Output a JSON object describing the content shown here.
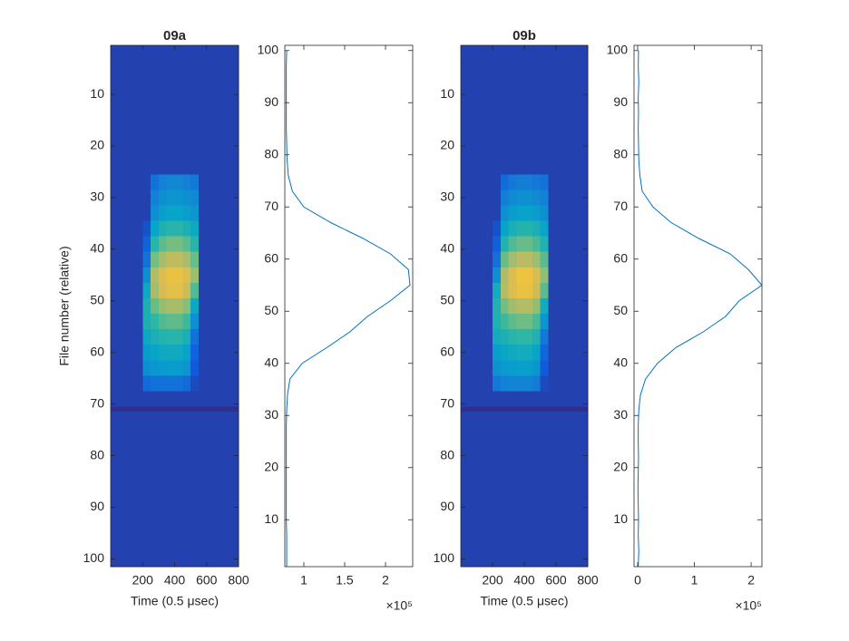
{
  "chart_data": [
    {
      "type": "heatmap",
      "title": "09a",
      "xlabel": "Time (0.5 μsec)",
      "ylabel": "File number (relative)",
      "xlim": [
        0,
        800
      ],
      "xticks": [
        200,
        400,
        600,
        800
      ],
      "ylim": [
        0.5,
        101.5
      ],
      "yticks": [
        10,
        20,
        30,
        40,
        50,
        60,
        70,
        80,
        90,
        100
      ],
      "ydir": "reverse",
      "clim": [
        0,
        1
      ],
      "colormap": [
        "#352a87",
        "#0f5cdd",
        "#1481d6",
        "#06a4ca",
        "#2eb7a4",
        "#87bf77",
        "#d1bb59",
        "#fec832",
        "#f9fb0e"
      ],
      "x_edges": [
        0,
        200,
        250,
        300,
        350,
        400,
        450,
        500,
        550,
        800
      ],
      "y_edges": [
        0.5,
        5.5,
        10.5,
        15.5,
        20.5,
        25.5,
        28.5,
        31.5,
        34.5,
        37.5,
        40.5,
        43.5,
        46.5,
        49.5,
        52.5,
        55.5,
        58.5,
        61.5,
        64.5,
        67.5,
        70.5,
        71.5,
        76.5,
        81.5,
        86.5,
        91.5,
        96.5,
        101.5
      ],
      "z": [
        [
          0.06,
          0.06,
          0.06,
          0.06,
          0.06,
          0.06,
          0.06,
          0.06,
          0.06
        ],
        [
          0.06,
          0.06,
          0.06,
          0.06,
          0.06,
          0.06,
          0.06,
          0.06,
          0.06
        ],
        [
          0.06,
          0.06,
          0.06,
          0.06,
          0.06,
          0.06,
          0.06,
          0.06,
          0.06
        ],
        [
          0.06,
          0.06,
          0.06,
          0.06,
          0.06,
          0.06,
          0.06,
          0.06,
          0.06
        ],
        [
          0.06,
          0.06,
          0.06,
          0.06,
          0.06,
          0.06,
          0.06,
          0.06,
          0.06
        ],
        [
          0.06,
          0.06,
          0.2,
          0.25,
          0.27,
          0.27,
          0.25,
          0.22,
          0.06
        ],
        [
          0.06,
          0.06,
          0.25,
          0.3,
          0.32,
          0.32,
          0.3,
          0.27,
          0.06
        ],
        [
          0.06,
          0.06,
          0.3,
          0.36,
          0.38,
          0.38,
          0.36,
          0.32,
          0.06
        ],
        [
          0.06,
          0.1,
          0.38,
          0.45,
          0.48,
          0.48,
          0.45,
          0.4,
          0.06
        ],
        [
          0.06,
          0.15,
          0.48,
          0.56,
          0.6,
          0.6,
          0.56,
          0.48,
          0.06
        ],
        [
          0.06,
          0.2,
          0.6,
          0.68,
          0.72,
          0.72,
          0.68,
          0.58,
          0.06
        ],
        [
          0.06,
          0.3,
          0.7,
          0.78,
          0.82,
          0.82,
          0.78,
          0.66,
          0.06
        ],
        [
          0.06,
          0.4,
          0.68,
          0.76,
          0.8,
          0.8,
          0.74,
          0.55,
          0.06
        ],
        [
          0.06,
          0.45,
          0.58,
          0.65,
          0.68,
          0.68,
          0.62,
          0.4,
          0.06
        ],
        [
          0.06,
          0.45,
          0.5,
          0.55,
          0.57,
          0.57,
          0.52,
          0.3,
          0.06
        ],
        [
          0.06,
          0.4,
          0.44,
          0.47,
          0.48,
          0.48,
          0.44,
          0.2,
          0.06
        ],
        [
          0.06,
          0.35,
          0.38,
          0.4,
          0.41,
          0.41,
          0.37,
          0.15,
          0.06
        ],
        [
          0.06,
          0.3,
          0.33,
          0.34,
          0.35,
          0.35,
          0.32,
          0.12,
          0.06
        ],
        [
          0.06,
          0.18,
          0.2,
          0.2,
          0.2,
          0.2,
          0.18,
          0.08,
          0.06
        ],
        [
          0.06,
          0.06,
          0.06,
          0.06,
          0.06,
          0.06,
          0.06,
          0.06,
          0.06
        ],
        [
          0.01,
          0.01,
          0.01,
          0.01,
          0.01,
          0.01,
          0.01,
          0.01,
          0.01
        ],
        [
          0.06,
          0.06,
          0.06,
          0.06,
          0.06,
          0.06,
          0.06,
          0.06,
          0.06
        ],
        [
          0.06,
          0.06,
          0.06,
          0.06,
          0.06,
          0.06,
          0.06,
          0.06,
          0.06
        ],
        [
          0.06,
          0.06,
          0.06,
          0.06,
          0.06,
          0.06,
          0.06,
          0.06,
          0.06
        ],
        [
          0.06,
          0.06,
          0.06,
          0.06,
          0.06,
          0.06,
          0.06,
          0.06,
          0.06
        ],
        [
          0.06,
          0.06,
          0.06,
          0.06,
          0.06,
          0.06,
          0.06,
          0.06,
          0.06
        ],
        [
          0.06,
          0.06,
          0.06,
          0.06,
          0.06,
          0.06,
          0.06,
          0.06,
          0.06
        ]
      ]
    },
    {
      "type": "line",
      "color": "#0072bd",
      "x_exponent": "×10⁵",
      "xlim": [
        76700,
        233300
      ],
      "xticks": [
        {
          "value": 100000,
          "label": "1"
        },
        {
          "value": 150000,
          "label": "1.5"
        },
        {
          "value": 200000,
          "label": "2"
        }
      ],
      "ylim": [
        1,
        101
      ],
      "yticks": [
        10,
        20,
        30,
        40,
        50,
        60,
        70,
        80,
        90,
        100
      ],
      "y": [
        1,
        4,
        7,
        10,
        13,
        16,
        19,
        22,
        25,
        28,
        31,
        34,
        37,
        40,
        43,
        46,
        49,
        52,
        55,
        58,
        61,
        64,
        67,
        70,
        73,
        76,
        79,
        82,
        85,
        88,
        91,
        94,
        97,
        100
      ],
      "values": [
        79000,
        79000,
        79000,
        78500,
        78500,
        78500,
        78500,
        78500,
        78500,
        78500,
        79000,
        80000,
        83000,
        98000,
        128000,
        156000,
        178000,
        206000,
        230000,
        228000,
        206000,
        172000,
        133000,
        100000,
        86000,
        81000,
        79500,
        79000,
        78500,
        78500,
        78500,
        78500,
        78500,
        79000
      ]
    },
    {
      "type": "heatmap",
      "title": "09b",
      "xlabel": "Time (0.5 μsec)",
      "xlim": [
        0,
        800
      ],
      "xticks": [
        200,
        400,
        600,
        800
      ],
      "ylim": [
        0.5,
        101.5
      ],
      "yticks": [
        10,
        20,
        30,
        40,
        50,
        60,
        70,
        80,
        90,
        100
      ],
      "ydir": "reverse",
      "clim": [
        0,
        1
      ],
      "colormap": [
        "#352a87",
        "#0f5cdd",
        "#1481d6",
        "#06a4ca",
        "#2eb7a4",
        "#87bf77",
        "#d1bb59",
        "#fec832",
        "#f9fb0e"
      ],
      "x_edges": [
        0,
        200,
        250,
        300,
        350,
        400,
        450,
        500,
        550,
        800
      ],
      "y_edges": [
        0.5,
        5.5,
        10.5,
        15.5,
        20.5,
        25.5,
        28.5,
        31.5,
        34.5,
        37.5,
        40.5,
        43.5,
        46.5,
        49.5,
        52.5,
        55.5,
        58.5,
        61.5,
        64.5,
        67.5,
        70.5,
        71.5,
        76.5,
        81.5,
        86.5,
        91.5,
        96.5,
        101.5
      ],
      "z": [
        [
          0.06,
          0.06,
          0.06,
          0.06,
          0.06,
          0.06,
          0.06,
          0.06,
          0.06
        ],
        [
          0.06,
          0.06,
          0.06,
          0.06,
          0.06,
          0.06,
          0.06,
          0.06,
          0.06
        ],
        [
          0.06,
          0.06,
          0.06,
          0.06,
          0.06,
          0.06,
          0.06,
          0.06,
          0.06
        ],
        [
          0.06,
          0.06,
          0.06,
          0.06,
          0.06,
          0.06,
          0.06,
          0.06,
          0.06
        ],
        [
          0.06,
          0.06,
          0.06,
          0.06,
          0.06,
          0.06,
          0.06,
          0.06,
          0.06
        ],
        [
          0.06,
          0.06,
          0.18,
          0.22,
          0.24,
          0.24,
          0.22,
          0.2,
          0.06
        ],
        [
          0.06,
          0.06,
          0.24,
          0.28,
          0.3,
          0.3,
          0.28,
          0.25,
          0.06
        ],
        [
          0.06,
          0.06,
          0.3,
          0.35,
          0.37,
          0.37,
          0.35,
          0.3,
          0.06
        ],
        [
          0.06,
          0.1,
          0.37,
          0.44,
          0.47,
          0.47,
          0.44,
          0.38,
          0.06
        ],
        [
          0.06,
          0.14,
          0.46,
          0.55,
          0.58,
          0.58,
          0.54,
          0.46,
          0.06
        ],
        [
          0.06,
          0.2,
          0.58,
          0.67,
          0.71,
          0.71,
          0.66,
          0.56,
          0.06
        ],
        [
          0.06,
          0.3,
          0.69,
          0.78,
          0.83,
          0.83,
          0.77,
          0.64,
          0.06
        ],
        [
          0.06,
          0.42,
          0.7,
          0.78,
          0.82,
          0.82,
          0.75,
          0.56,
          0.06
        ],
        [
          0.06,
          0.46,
          0.6,
          0.67,
          0.7,
          0.7,
          0.64,
          0.42,
          0.06
        ],
        [
          0.06,
          0.46,
          0.52,
          0.57,
          0.59,
          0.59,
          0.54,
          0.32,
          0.06
        ],
        [
          0.06,
          0.42,
          0.45,
          0.48,
          0.5,
          0.5,
          0.46,
          0.22,
          0.06
        ],
        [
          0.06,
          0.36,
          0.39,
          0.41,
          0.42,
          0.42,
          0.38,
          0.16,
          0.06
        ],
        [
          0.06,
          0.31,
          0.34,
          0.35,
          0.36,
          0.36,
          0.33,
          0.12,
          0.06
        ],
        [
          0.06,
          0.22,
          0.25,
          0.26,
          0.26,
          0.26,
          0.23,
          0.08,
          0.06
        ],
        [
          0.06,
          0.06,
          0.06,
          0.06,
          0.06,
          0.06,
          0.06,
          0.06,
          0.06
        ],
        [
          0.01,
          0.01,
          0.01,
          0.01,
          0.01,
          0.01,
          0.01,
          0.01,
          0.01
        ],
        [
          0.06,
          0.06,
          0.06,
          0.06,
          0.06,
          0.06,
          0.06,
          0.06,
          0.06
        ],
        [
          0.06,
          0.06,
          0.06,
          0.06,
          0.06,
          0.06,
          0.06,
          0.06,
          0.06
        ],
        [
          0.06,
          0.06,
          0.06,
          0.06,
          0.06,
          0.06,
          0.06,
          0.06,
          0.06
        ],
        [
          0.06,
          0.06,
          0.06,
          0.06,
          0.06,
          0.06,
          0.06,
          0.06,
          0.06
        ],
        [
          0.06,
          0.06,
          0.06,
          0.06,
          0.06,
          0.06,
          0.06,
          0.06,
          0.06
        ],
        [
          0.06,
          0.06,
          0.06,
          0.06,
          0.06,
          0.06,
          0.06,
          0.06,
          0.06
        ]
      ]
    },
    {
      "type": "line",
      "color": "#0072bd",
      "x_exponent": "×10⁵",
      "xlim": [
        -6400,
        219000
      ],
      "xticks": [
        {
          "value": 0,
          "label": "0"
        },
        {
          "value": 100000,
          "label": "1"
        },
        {
          "value": 200000,
          "label": "2"
        }
      ],
      "ylim": [
        1,
        101
      ],
      "yticks": [
        10,
        20,
        30,
        40,
        50,
        60,
        70,
        80,
        90,
        100
      ],
      "y": [
        1,
        4,
        7,
        10,
        13,
        16,
        19,
        22,
        25,
        28,
        31,
        34,
        37,
        40,
        43,
        46,
        49,
        52,
        55,
        58,
        61,
        64,
        67,
        70,
        73,
        76,
        79,
        82,
        85,
        88,
        91,
        94,
        97,
        100
      ],
      "values": [
        1000,
        2000,
        1000,
        1500,
        1000,
        500,
        1000,
        1500,
        1000,
        1000,
        2000,
        5000,
        14000,
        35000,
        67000,
        115000,
        155000,
        179000,
        219000,
        195000,
        163000,
        107000,
        59000,
        27000,
        8000,
        4000,
        2000,
        1500,
        1000,
        1500,
        1000,
        2000,
        1000,
        1500
      ]
    }
  ]
}
